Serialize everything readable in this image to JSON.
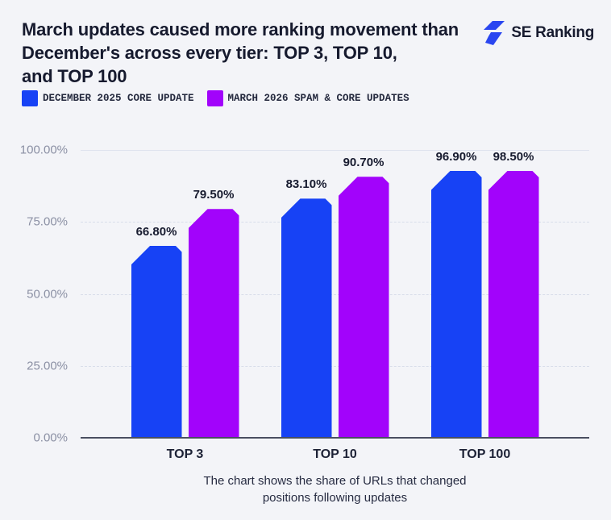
{
  "page": {
    "background": "#f3f4f8"
  },
  "header": {
    "title": "March updates caused more ranking movement than\nDecember's across every tier: TOP 3, TOP 10,\nand TOP 100",
    "logo_text": "SE Ranking",
    "logo_color": "#2a46f0"
  },
  "legend": [
    {
      "label": "DECEMBER 2025 CORE UPDATE",
      "color": "#1742f5"
    },
    {
      "label": "MARCH 2026 SPAM & CORE UPDATES",
      "color": "#a203fb"
    }
  ],
  "chart_data": {
    "type": "bar",
    "title": "March updates caused more ranking movement than December's across every tier: TOP 3, TOP 10, and TOP 100",
    "categories": [
      "TOP 3",
      "TOP 10",
      "TOP 100"
    ],
    "series": [
      {
        "name": "DECEMBER 2025 CORE UPDATE",
        "color": "#1742f5",
        "values": [
          66.8,
          83.1,
          96.9
        ],
        "labels": [
          "66.80%",
          "83.10%",
          "96.90%"
        ]
      },
      {
        "name": "MARCH 2026 SPAM & CORE UPDATES",
        "color": "#a203fb",
        "values": [
          79.5,
          90.7,
          98.5
        ],
        "labels": [
          "79.50%",
          "90.70%",
          "98.50%"
        ]
      }
    ],
    "ylim": [
      0,
      100
    ],
    "y_tick_labels": [
      "100.00%",
      "75.00%",
      "50.00%",
      "25.00%",
      "0.00%"
    ],
    "grid": "horizontal",
    "legend_position": "top-left"
  },
  "caption": "The chart shows the share of URLs that changed\npositions following updates"
}
